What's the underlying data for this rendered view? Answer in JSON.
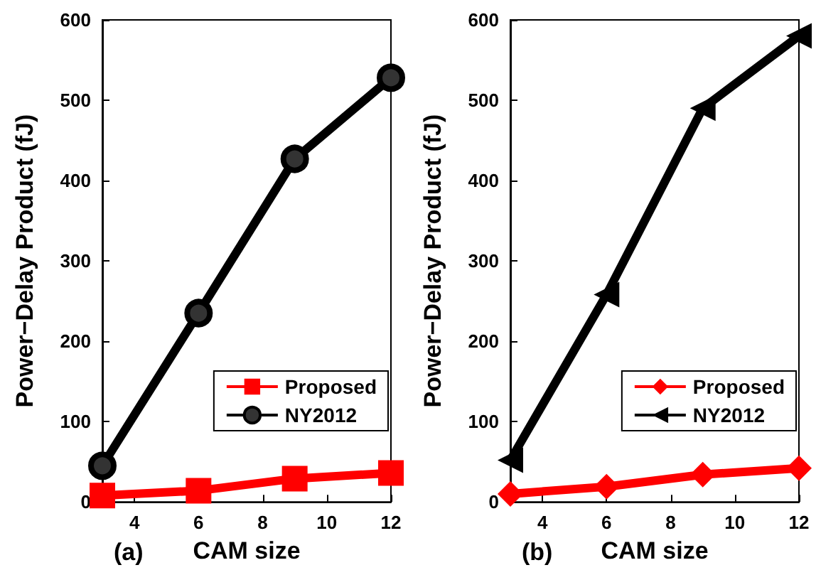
{
  "chart_data": [
    {
      "type": "line",
      "xlabel": "CAM size",
      "ylabel": "Power−Delay Product (fJ)",
      "annotations": [
        "(a)"
      ],
      "x": [
        3,
        6,
        9,
        12
      ],
      "xlim": [
        3,
        12
      ],
      "xticks": [
        4,
        6,
        8,
        10,
        12
      ],
      "ylim": [
        0,
        600
      ],
      "yticks": [
        0,
        100,
        200,
        300,
        400,
        500,
        600
      ],
      "grid": false,
      "legend": "bottom right",
      "line_style": "solid",
      "series": [
        {
          "name": "Proposed",
          "color": "#ff0000",
          "marker": "square",
          "values": [
            8,
            14,
            29,
            36
          ]
        },
        {
          "name": "NY2012",
          "color": "#000000",
          "marker": "circle",
          "values": [
            45,
            235,
            427,
            528
          ]
        }
      ]
    },
    {
      "type": "line",
      "xlabel": "CAM size",
      "ylabel": "Power−Delay Product (fJ)",
      "annotations": [
        "(b)"
      ],
      "x": [
        3,
        6,
        9,
        12
      ],
      "xlim": [
        3,
        12
      ],
      "xticks": [
        4,
        6,
        8,
        10,
        12
      ],
      "ylim": [
        0,
        600
      ],
      "yticks": [
        0,
        100,
        200,
        300,
        400,
        500,
        600
      ],
      "grid": false,
      "legend": "bottom right",
      "line_style": "solid",
      "series": [
        {
          "name": "Proposed",
          "color": "#ff0000",
          "marker": "diamond",
          "values": [
            10,
            19,
            34,
            42
          ]
        },
        {
          "name": "NY2012",
          "color": "#000000",
          "marker": "triangle",
          "values": [
            52,
            258,
            490,
            580
          ]
        }
      ]
    }
  ]
}
